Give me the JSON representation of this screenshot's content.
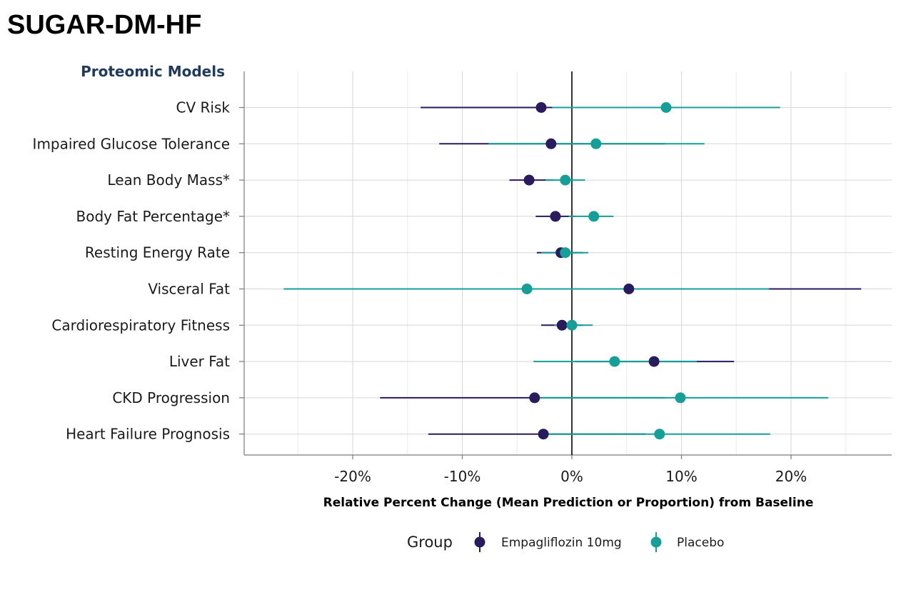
{
  "page": {
    "title": "SUGAR-DM-HF"
  },
  "chart_data": {
    "type": "scatter",
    "subtype": "forest-plot",
    "panel_title": "Proteomic Models",
    "xlabel": "Relative Percent Change (Mean Prediction or Proportion) from Baseline",
    "xlim": [
      -30,
      29
    ],
    "x_ticks": [
      -20,
      -10,
      0,
      10,
      20
    ],
    "x_tick_labels": [
      "-20%",
      "-10%",
      "0%",
      "10%",
      "20%"
    ],
    "reference_line": 0,
    "grid": true,
    "legend": {
      "title": "Group",
      "position": "bottom"
    },
    "categories": [
      "CV Risk",
      "Impaired Glucose Tolerance",
      "Lean Body Mass*",
      "Body Fat Percentage*",
      "Resting Energy Rate",
      "Visceral Fat",
      "Cardiorespiratory Fitness",
      "Liver Fat",
      "CKD Progression",
      "Heart Failure Prognosis"
    ],
    "series": [
      {
        "name": "Empagliflozin 10mg",
        "color": "#2a1a5e",
        "estimates": [
          -2.8,
          -1.9,
          -3.9,
          -1.5,
          -1.0,
          5.2,
          -0.9,
          7.5,
          -3.4,
          -2.6
        ],
        "lower": [
          -13.8,
          -12.1,
          -5.7,
          -3.3,
          -3.2,
          -5.8,
          -2.8,
          0.3,
          -17.5,
          -13.1
        ],
        "upper": [
          5.5,
          8.5,
          -1.7,
          0.3,
          1.0,
          26.4,
          1.0,
          14.8,
          8.5,
          6.7
        ]
      },
      {
        "name": "Placebo",
        "color": "#14a098",
        "estimates": [
          8.6,
          2.2,
          -0.6,
          2.0,
          -0.6,
          -4.1,
          0.0,
          3.9,
          9.9,
          8.0
        ],
        "lower": [
          -1.8,
          -7.6,
          -2.4,
          -0.3,
          -2.8,
          -26.3,
          -1.6,
          -3.5,
          -3.2,
          -2.2
        ],
        "upper": [
          19.0,
          12.1,
          1.2,
          3.8,
          1.5,
          18.0,
          1.9,
          11.4,
          23.4,
          18.1
        ]
      }
    ]
  }
}
